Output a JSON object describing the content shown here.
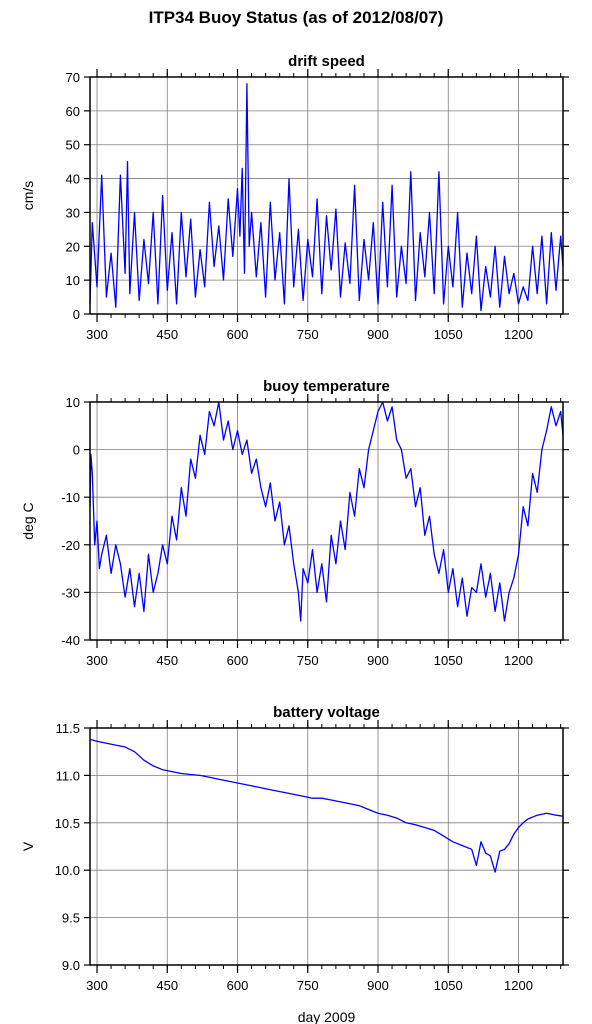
{
  "page_title": "ITP34 Buoy Status (as of 2012/08/07)",
  "colors": {
    "line": "#0000ff",
    "axis": "#000000",
    "grid": "#7f7f7f",
    "background": "#ffffff"
  },
  "chart_data": [
    {
      "type": "line",
      "title": "drift speed",
      "xlabel": "",
      "ylabel": "cm/s",
      "xlim": [
        285,
        1295
      ],
      "ylim": [
        0,
        70
      ],
      "xticks": [
        300,
        450,
        600,
        750,
        900,
        1050,
        1200
      ],
      "yticks": [
        0,
        10,
        20,
        30,
        40,
        50,
        60,
        70
      ],
      "grid": true,
      "legend": "none",
      "series": [
        {
          "x": [
            285,
            290,
            300,
            310,
            320,
            330,
            340,
            350,
            360,
            365,
            370,
            380,
            390,
            400,
            410,
            420,
            430,
            440,
            450,
            460,
            470,
            480,
            490,
            500,
            510,
            520,
            530,
            540,
            550,
            560,
            570,
            580,
            590,
            600,
            605,
            610,
            615,
            620,
            625,
            630,
            640,
            650,
            660,
            670,
            680,
            690,
            700,
            710,
            720,
            730,
            740,
            750,
            760,
            770,
            780,
            790,
            800,
            810,
            820,
            830,
            840,
            850,
            860,
            870,
            880,
            890,
            900,
            910,
            920,
            930,
            940,
            950,
            960,
            970,
            980,
            990,
            1000,
            1010,
            1020,
            1030,
            1040,
            1050,
            1060,
            1070,
            1080,
            1090,
            1100,
            1110,
            1120,
            1130,
            1140,
            1150,
            1160,
            1170,
            1180,
            1190,
            1200,
            1210,
            1220,
            1230,
            1240,
            1250,
            1260,
            1270,
            1280,
            1290,
            1295
          ],
          "y": [
            3,
            27,
            8,
            41,
            5,
            18,
            2,
            41,
            12,
            45,
            6,
            30,
            4,
            22,
            9,
            30,
            3,
            35,
            7,
            24,
            3,
            30,
            11,
            28,
            5,
            19,
            8,
            33,
            14,
            26,
            10,
            34,
            17,
            37,
            23,
            43,
            12,
            68,
            20,
            30,
            11,
            27,
            5,
            33,
            10,
            24,
            3,
            40,
            8,
            25,
            4,
            22,
            11,
            34,
            6,
            29,
            13,
            31,
            5,
            21,
            9,
            38,
            4,
            22,
            10,
            27,
            3,
            33,
            8,
            38,
            5,
            20,
            9,
            42,
            4,
            24,
            11,
            30,
            6,
            42,
            3,
            20,
            8,
            30,
            2,
            18,
            6,
            23,
            1,
            14,
            5,
            20,
            2,
            17,
            6,
            12,
            3,
            8,
            4,
            20,
            6,
            23,
            3,
            24,
            7,
            23,
            14
          ]
        }
      ]
    },
    {
      "type": "line",
      "title": "buoy temperature",
      "xlabel": "",
      "ylabel": "deg C",
      "xlim": [
        285,
        1295
      ],
      "ylim": [
        -40,
        10
      ],
      "xticks": [
        300,
        450,
        600,
        750,
        900,
        1050,
        1200
      ],
      "yticks": [
        -40,
        -30,
        -20,
        -10,
        0,
        10
      ],
      "grid": true,
      "legend": "none",
      "series": [
        {
          "x": [
            285,
            287,
            290,
            295,
            300,
            305,
            310,
            320,
            330,
            340,
            350,
            360,
            370,
            380,
            390,
            400,
            410,
            420,
            430,
            440,
            450,
            460,
            470,
            480,
            490,
            500,
            510,
            520,
            530,
            540,
            550,
            560,
            570,
            580,
            590,
            600,
            610,
            620,
            630,
            640,
            650,
            660,
            670,
            680,
            690,
            700,
            710,
            720,
            730,
            735,
            740,
            750,
            760,
            770,
            780,
            790,
            800,
            810,
            820,
            830,
            840,
            850,
            860,
            870,
            880,
            890,
            900,
            910,
            920,
            930,
            940,
            950,
            960,
            970,
            980,
            990,
            1000,
            1010,
            1020,
            1030,
            1040,
            1050,
            1060,
            1070,
            1080,
            1090,
            1100,
            1110,
            1120,
            1130,
            1140,
            1150,
            1160,
            1170,
            1180,
            1190,
            1200,
            1210,
            1220,
            1230,
            1240,
            1250,
            1260,
            1270,
            1280,
            1290,
            1295
          ],
          "y": [
            -12,
            -1,
            -5,
            -20,
            -15,
            -25,
            -22,
            -18,
            -26,
            -20,
            -24,
            -31,
            -25,
            -33,
            -26,
            -34,
            -22,
            -30,
            -26,
            -20,
            -24,
            -14,
            -19,
            -8,
            -14,
            -2,
            -6,
            3,
            -1,
            8,
            5,
            10,
            2,
            6,
            0,
            4,
            -1,
            2,
            -5,
            -2,
            -8,
            -12,
            -7,
            -15,
            -11,
            -20,
            -16,
            -24,
            -30,
            -36,
            -25,
            -28,
            -21,
            -30,
            -24,
            -32,
            -18,
            -24,
            -15,
            -21,
            -9,
            -14,
            -4,
            -8,
            0,
            4,
            8,
            10,
            6,
            9,
            2,
            0,
            -6,
            -4,
            -12,
            -8,
            -18,
            -14,
            -22,
            -26,
            -21,
            -30,
            -25,
            -33,
            -27,
            -35,
            -29,
            -30,
            -24,
            -31,
            -26,
            -34,
            -28,
            -36,
            -30,
            -27,
            -22,
            -12,
            -16,
            -5,
            -9,
            0,
            4,
            9,
            5,
            8,
            3
          ]
        }
      ]
    },
    {
      "type": "line",
      "title": "battery voltage",
      "xlabel": "day 2009",
      "ylabel": "V",
      "xlim": [
        285,
        1295
      ],
      "ylim": [
        9.0,
        11.5
      ],
      "xticks": [
        300,
        450,
        600,
        750,
        900,
        1050,
        1200
      ],
      "yticks": [
        9.0,
        9.5,
        10.0,
        10.5,
        11.0,
        11.5
      ],
      "ytick_labels": [
        "9.0",
        "9.5",
        "10.0",
        "10.5",
        "11.0",
        "11.5"
      ],
      "grid": true,
      "legend": "none",
      "series": [
        {
          "x": [
            285,
            300,
            320,
            340,
            360,
            380,
            400,
            420,
            440,
            460,
            480,
            500,
            520,
            540,
            560,
            580,
            600,
            620,
            640,
            660,
            680,
            700,
            720,
            740,
            760,
            780,
            800,
            820,
            840,
            860,
            880,
            900,
            920,
            940,
            960,
            980,
            1000,
            1020,
            1040,
            1060,
            1080,
            1100,
            1110,
            1120,
            1130,
            1140,
            1150,
            1160,
            1170,
            1180,
            1190,
            1200,
            1210,
            1220,
            1240,
            1260,
            1280,
            1295
          ],
          "y": [
            11.38,
            11.36,
            11.34,
            11.32,
            11.3,
            11.25,
            11.16,
            11.1,
            11.06,
            11.04,
            11.02,
            11.01,
            11.0,
            10.98,
            10.96,
            10.94,
            10.92,
            10.9,
            10.88,
            10.86,
            10.84,
            10.82,
            10.8,
            10.78,
            10.76,
            10.76,
            10.74,
            10.72,
            10.7,
            10.68,
            10.64,
            10.6,
            10.58,
            10.55,
            10.5,
            10.48,
            10.45,
            10.42,
            10.36,
            10.3,
            10.26,
            10.22,
            10.05,
            10.3,
            10.18,
            10.15,
            9.98,
            10.2,
            10.22,
            10.28,
            10.38,
            10.45,
            10.5,
            10.54,
            10.58,
            10.6,
            10.58,
            10.57
          ]
        }
      ]
    }
  ]
}
